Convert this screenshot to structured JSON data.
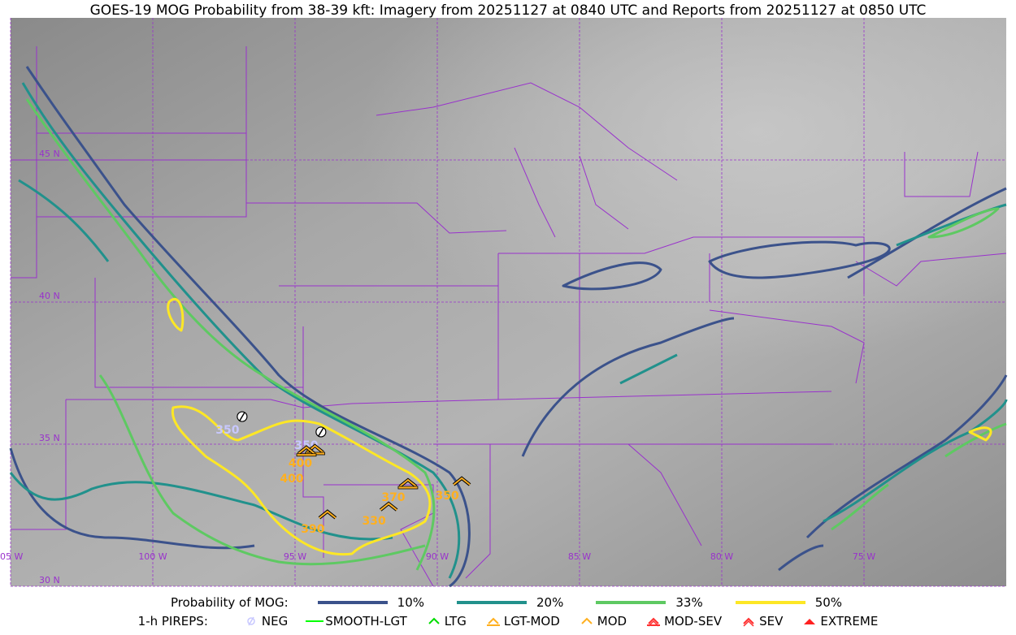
{
  "title": "GOES-19 MOG Probability from 38-39 kft: Imagery from 20251127 at 0840 UTC and Reports from 20251127 at 0850 UTC",
  "map": {
    "lon_range": [
      -105,
      -70
    ],
    "lat_range": [
      30,
      50
    ],
    "lon_lines": [
      -105,
      -100,
      -95,
      -90,
      -85,
      -80,
      -75
    ],
    "lat_lines": [
      45,
      40,
      35,
      30
    ],
    "lon_labels": [
      "05 W",
      "100 W",
      "95 W",
      "90 W",
      "85 W",
      "80 W",
      "75 W"
    ],
    "lat_labels": [
      "45 N",
      "40 N",
      "35 N",
      "30 N"
    ],
    "grid_color": "#9932cc",
    "border_color": "#9932cc"
  },
  "legend": {
    "prob_title": "Probability of MOG:",
    "prob_levels": [
      {
        "label": "10%",
        "color": "#3b528b"
      },
      {
        "label": "20%",
        "color": "#21918c"
      },
      {
        "label": "33%",
        "color": "#5ec962"
      },
      {
        "label": "50%",
        "color": "#fde725"
      }
    ],
    "pirep_title": "1-h PIREPS:",
    "pirep_types": [
      {
        "label": "NEG",
        "icon": "neg-circle-slash-icon",
        "color": "#c8c8ff"
      },
      {
        "label": "SMOOTH-LGT",
        "icon": "line-icon",
        "color": "#00ff00"
      },
      {
        "label": "LTG",
        "icon": "caret-icon",
        "color": "#00dd00"
      },
      {
        "label": "LGT-MOD",
        "icon": "caret-bar-icon",
        "color": "#ffb020"
      },
      {
        "label": "MOD",
        "icon": "caret-icon",
        "color": "#ffb020"
      },
      {
        "label": "MOD-SEV",
        "icon": "double-caret-bar-icon",
        "color": "#ff3030"
      },
      {
        "label": "SEV",
        "icon": "double-caret-icon",
        "color": "#ff3030"
      },
      {
        "label": "EXTREME",
        "icon": "filled-triangle-icon",
        "color": "#ff2020"
      }
    ]
  },
  "reports": [
    {
      "type": "NEG",
      "lon": -96.86,
      "lat": 35.97,
      "alt": "350"
    },
    {
      "type": "NEG",
      "lon": -94.09,
      "lat": 35.43,
      "alt": "350"
    },
    {
      "type": "LGT-MOD",
      "lon": -94.3,
      "lat": 34.8,
      "alt": "400"
    },
    {
      "type": "LGT-MOD",
      "lon": -94.6,
      "lat": 34.75,
      "alt": "400"
    },
    {
      "type": "LGT-MOD",
      "lon": -91.03,
      "lat": 33.6,
      "alt": "370"
    },
    {
      "type": "MOD",
      "lon": -89.14,
      "lat": 33.66,
      "alt": "350"
    },
    {
      "type": "MOD",
      "lon": -91.71,
      "lat": 32.77,
      "alt": "330"
    },
    {
      "type": "MOD",
      "lon": -93.86,
      "lat": 32.49,
      "alt": "390"
    }
  ]
}
